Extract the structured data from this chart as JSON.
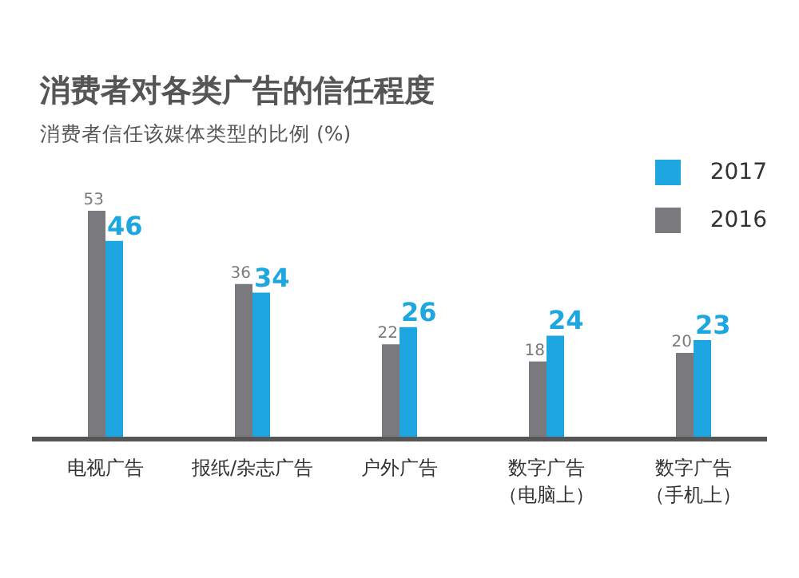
{
  "chart_data": {
    "type": "bar",
    "title": "消费者对各类广告的信任程度",
    "subtitle": "消费者信任该媒体类型的比例 (%)",
    "categories": [
      "电视广告",
      "报纸/杂志广告",
      "户外广告",
      "数字广告（电脑上）",
      "数字广告（手机上）"
    ],
    "series": [
      {
        "name": "2016",
        "color": "#7a7a7e",
        "values": [
          53,
          36,
          22,
          18,
          20
        ]
      },
      {
        "name": "2017",
        "color": "#1ea6e0",
        "values": [
          46,
          34,
          26,
          24,
          23
        ]
      }
    ],
    "data_labels": true,
    "legend": "top right",
    "grid": false
  }
}
